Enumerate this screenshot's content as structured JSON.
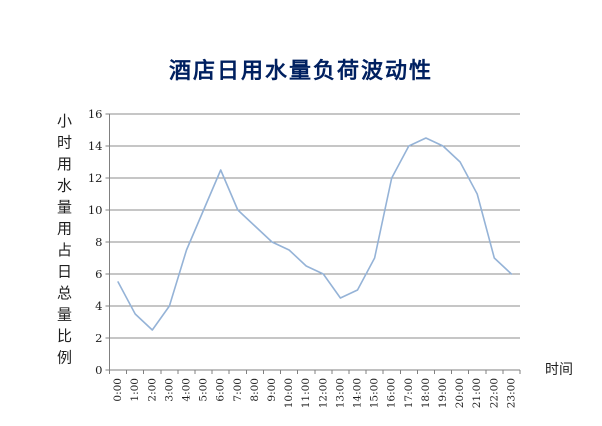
{
  "title": "酒店日用水量负荷波动性",
  "colors": {
    "title": "#002060",
    "series": "#95B3D7",
    "gridline": "#8C8C8C",
    "axis": "#808080",
    "tick_text": "#1f1f1f"
  },
  "chart_data": {
    "type": "line",
    "title": "酒店日用水量负荷波动性",
    "xlabel": "时间",
    "ylabel": "小时用水量用占日总量比例",
    "categories": [
      "0:00",
      "1:00",
      "2:00",
      "3:00",
      "4:00",
      "5:00",
      "6:00",
      "7:00",
      "8:00",
      "9:00",
      "10:00",
      "11:00",
      "12:00",
      "13:00",
      "14:00",
      "15:00",
      "16:00",
      "17:00",
      "18:00",
      "19:00",
      "20:00",
      "21:00",
      "22:00",
      "23:00"
    ],
    "values": [
      5.5,
      3.5,
      2.5,
      4,
      7.5,
      10,
      12.5,
      10,
      9,
      8,
      7.5,
      6.5,
      6,
      4.5,
      5,
      7,
      12,
      14,
      14.5,
      14,
      13,
      11,
      7,
      6
    ],
    "ylim": [
      0,
      16
    ],
    "yticks": [
      0,
      2,
      4,
      6,
      8,
      10,
      12,
      14,
      16
    ],
    "grid": true,
    "legend": false,
    "series_color": "#95B3D7"
  }
}
